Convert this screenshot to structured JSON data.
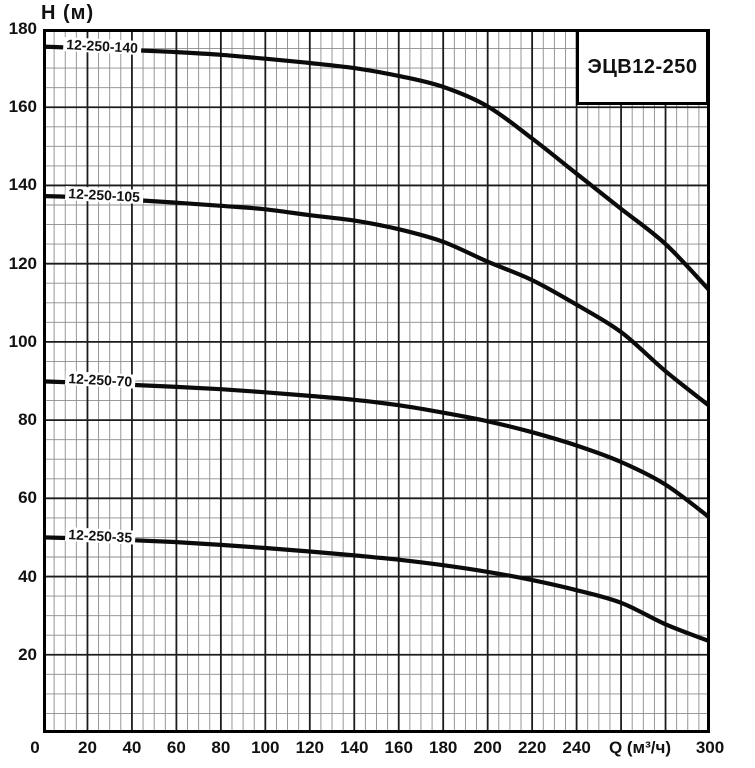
{
  "title_box": {
    "label": "ЭЦВ12-250"
  },
  "colors": {
    "background": "#ffffff",
    "curve": "#0b0b0b",
    "major_grid": "#1c1c1c",
    "minor_grid": "#8c8c8c",
    "border": "#000000",
    "text": "#111111"
  },
  "chart_data": {
    "type": "line",
    "title": "ЭЦВ12-250",
    "xlabel": "Q (м³/ч)",
    "ylabel": "H (м)",
    "xlim": [
      0,
      300
    ],
    "ylim": [
      0,
      180
    ],
    "grid": {
      "major_step": 20,
      "minor_step": 5,
      "on": true
    },
    "legend_position": "labels-on-curves",
    "x_tick_labels": [
      0,
      20,
      40,
      60,
      80,
      100,
      120,
      140,
      160,
      180,
      200,
      220,
      240,
      300
    ],
    "y_tick_labels": [
      20,
      40,
      60,
      80,
      100,
      120,
      140,
      160,
      180
    ],
    "series": [
      {
        "name": "12-250-140",
        "label_anchor_q": 9,
        "points": [
          [
            0,
            175.5
          ],
          [
            20,
            175.1
          ],
          [
            40,
            174.6
          ],
          [
            60,
            174.1
          ],
          [
            80,
            173.4
          ],
          [
            100,
            172.4
          ],
          [
            120,
            171.3
          ],
          [
            140,
            170.0
          ],
          [
            160,
            168.0
          ],
          [
            180,
            165.2
          ],
          [
            200,
            160.2
          ],
          [
            220,
            152.0
          ],
          [
            240,
            143.0
          ],
          [
            260,
            134.0
          ],
          [
            280,
            125.0
          ],
          [
            300,
            113.0
          ]
        ]
      },
      {
        "name": "12-250-105",
        "label_anchor_q": 10,
        "points": [
          [
            0,
            137.3
          ],
          [
            20,
            136.9
          ],
          [
            40,
            136.3
          ],
          [
            60,
            135.6
          ],
          [
            80,
            134.8
          ],
          [
            100,
            133.9
          ],
          [
            120,
            132.4
          ],
          [
            140,
            131.0
          ],
          [
            160,
            128.8
          ],
          [
            180,
            125.6
          ],
          [
            200,
            120.5
          ],
          [
            220,
            115.8
          ],
          [
            240,
            109.5
          ],
          [
            260,
            102.5
          ],
          [
            280,
            92.5
          ],
          [
            300,
            83.5
          ]
        ]
      },
      {
        "name": "12-250-70",
        "label_anchor_q": 10,
        "points": [
          [
            0,
            89.9
          ],
          [
            20,
            89.5
          ],
          [
            40,
            89.0
          ],
          [
            60,
            88.5
          ],
          [
            80,
            87.9
          ],
          [
            100,
            87.1
          ],
          [
            120,
            86.2
          ],
          [
            140,
            85.2
          ],
          [
            160,
            83.8
          ],
          [
            180,
            81.9
          ],
          [
            200,
            79.7
          ],
          [
            220,
            76.9
          ],
          [
            240,
            73.5
          ],
          [
            260,
            69.3
          ],
          [
            280,
            63.5
          ],
          [
            300,
            55.0
          ]
        ]
      },
      {
        "name": "12-250-35",
        "label_anchor_q": 10,
        "points": [
          [
            0,
            50.0
          ],
          [
            20,
            49.7
          ],
          [
            40,
            49.3
          ],
          [
            60,
            48.8
          ],
          [
            80,
            48.1
          ],
          [
            100,
            47.3
          ],
          [
            120,
            46.4
          ],
          [
            140,
            45.4
          ],
          [
            160,
            44.3
          ],
          [
            180,
            42.9
          ],
          [
            200,
            41.2
          ],
          [
            220,
            39.1
          ],
          [
            240,
            36.5
          ],
          [
            260,
            33.3
          ],
          [
            280,
            27.8
          ],
          [
            300,
            23.4
          ]
        ]
      }
    ]
  }
}
